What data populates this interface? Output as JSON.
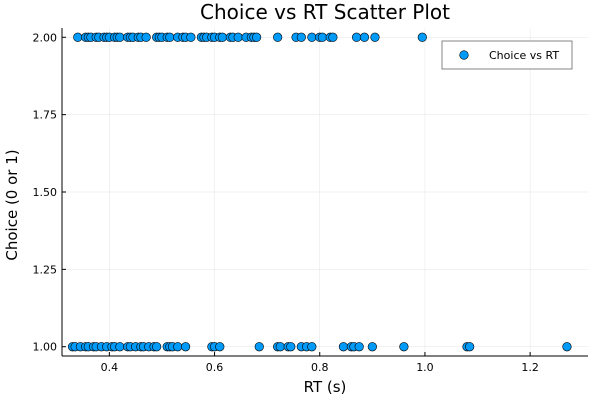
{
  "chart_data": {
    "type": "scatter",
    "title": "Choice vs RT Scatter Plot",
    "xlabel": "RT (s)",
    "ylabel": "Choice (0 or 1)",
    "xlim": [
      0.31,
      1.31
    ],
    "ylim": [
      0.97,
      2.03
    ],
    "x_ticks": [
      0.4,
      0.6,
      0.8,
      1.0,
      1.2
    ],
    "x_tick_labels": [
      "0.4",
      "0.6",
      "0.8",
      "1.0",
      "1.2"
    ],
    "y_ticks": [
      1.0,
      1.25,
      1.5,
      1.75,
      2.0
    ],
    "y_tick_labels": [
      "1.00",
      "1.25",
      "1.50",
      "1.75",
      "2.00"
    ],
    "grid": true,
    "legend_position": "top-right",
    "marker_color": "#009af9",
    "series": [
      {
        "name": "Choice vs RT",
        "points": [
          {
            "x": 0.34,
            "y": 2
          },
          {
            "x": 0.355,
            "y": 2
          },
          {
            "x": 0.36,
            "y": 2
          },
          {
            "x": 0.365,
            "y": 2
          },
          {
            "x": 0.375,
            "y": 2
          },
          {
            "x": 0.38,
            "y": 2
          },
          {
            "x": 0.39,
            "y": 2
          },
          {
            "x": 0.395,
            "y": 2
          },
          {
            "x": 0.4,
            "y": 2
          },
          {
            "x": 0.41,
            "y": 2
          },
          {
            "x": 0.415,
            "y": 2
          },
          {
            "x": 0.42,
            "y": 2
          },
          {
            "x": 0.435,
            "y": 2
          },
          {
            "x": 0.44,
            "y": 2
          },
          {
            "x": 0.445,
            "y": 2
          },
          {
            "x": 0.455,
            "y": 2
          },
          {
            "x": 0.46,
            "y": 2
          },
          {
            "x": 0.47,
            "y": 2
          },
          {
            "x": 0.49,
            "y": 2
          },
          {
            "x": 0.495,
            "y": 2
          },
          {
            "x": 0.5,
            "y": 2
          },
          {
            "x": 0.51,
            "y": 2
          },
          {
            "x": 0.515,
            "y": 2
          },
          {
            "x": 0.53,
            "y": 2
          },
          {
            "x": 0.54,
            "y": 2
          },
          {
            "x": 0.545,
            "y": 2
          },
          {
            "x": 0.555,
            "y": 2
          },
          {
            "x": 0.575,
            "y": 2
          },
          {
            "x": 0.58,
            "y": 2
          },
          {
            "x": 0.585,
            "y": 2
          },
          {
            "x": 0.595,
            "y": 2
          },
          {
            "x": 0.6,
            "y": 2
          },
          {
            "x": 0.61,
            "y": 2
          },
          {
            "x": 0.615,
            "y": 2
          },
          {
            "x": 0.63,
            "y": 2
          },
          {
            "x": 0.635,
            "y": 2
          },
          {
            "x": 0.645,
            "y": 2
          },
          {
            "x": 0.66,
            "y": 2
          },
          {
            "x": 0.67,
            "y": 2
          },
          {
            "x": 0.675,
            "y": 2
          },
          {
            "x": 0.68,
            "y": 2
          },
          {
            "x": 0.72,
            "y": 2
          },
          {
            "x": 0.755,
            "y": 2
          },
          {
            "x": 0.765,
            "y": 2
          },
          {
            "x": 0.785,
            "y": 2
          },
          {
            "x": 0.8,
            "y": 2
          },
          {
            "x": 0.805,
            "y": 2
          },
          {
            "x": 0.82,
            "y": 2
          },
          {
            "x": 0.825,
            "y": 2
          },
          {
            "x": 0.87,
            "y": 2
          },
          {
            "x": 0.885,
            "y": 2
          },
          {
            "x": 0.905,
            "y": 2
          },
          {
            "x": 0.995,
            "y": 2
          },
          {
            "x": 0.33,
            "y": 1
          },
          {
            "x": 0.335,
            "y": 1
          },
          {
            "x": 0.345,
            "y": 1
          },
          {
            "x": 0.355,
            "y": 1
          },
          {
            "x": 0.36,
            "y": 1
          },
          {
            "x": 0.37,
            "y": 1
          },
          {
            "x": 0.375,
            "y": 1
          },
          {
            "x": 0.385,
            "y": 1
          },
          {
            "x": 0.395,
            "y": 1
          },
          {
            "x": 0.405,
            "y": 1
          },
          {
            "x": 0.41,
            "y": 1
          },
          {
            "x": 0.42,
            "y": 1
          },
          {
            "x": 0.435,
            "y": 1
          },
          {
            "x": 0.44,
            "y": 1
          },
          {
            "x": 0.45,
            "y": 1
          },
          {
            "x": 0.46,
            "y": 1
          },
          {
            "x": 0.465,
            "y": 1
          },
          {
            "x": 0.475,
            "y": 1
          },
          {
            "x": 0.485,
            "y": 1
          },
          {
            "x": 0.49,
            "y": 1
          },
          {
            "x": 0.51,
            "y": 1
          },
          {
            "x": 0.515,
            "y": 1
          },
          {
            "x": 0.52,
            "y": 1
          },
          {
            "x": 0.53,
            "y": 1
          },
          {
            "x": 0.545,
            "y": 1
          },
          {
            "x": 0.595,
            "y": 1
          },
          {
            "x": 0.6,
            "y": 1
          },
          {
            "x": 0.61,
            "y": 1
          },
          {
            "x": 0.685,
            "y": 1
          },
          {
            "x": 0.72,
            "y": 1
          },
          {
            "x": 0.725,
            "y": 1
          },
          {
            "x": 0.74,
            "y": 1
          },
          {
            "x": 0.745,
            "y": 1
          },
          {
            "x": 0.765,
            "y": 1
          },
          {
            "x": 0.775,
            "y": 1
          },
          {
            "x": 0.785,
            "y": 1
          },
          {
            "x": 0.845,
            "y": 1
          },
          {
            "x": 0.86,
            "y": 1
          },
          {
            "x": 0.865,
            "y": 1
          },
          {
            "x": 0.875,
            "y": 1
          },
          {
            "x": 0.9,
            "y": 1
          },
          {
            "x": 0.96,
            "y": 1
          },
          {
            "x": 1.08,
            "y": 1
          },
          {
            "x": 1.085,
            "y": 1
          },
          {
            "x": 1.27,
            "y": 1
          }
        ]
      }
    ]
  }
}
